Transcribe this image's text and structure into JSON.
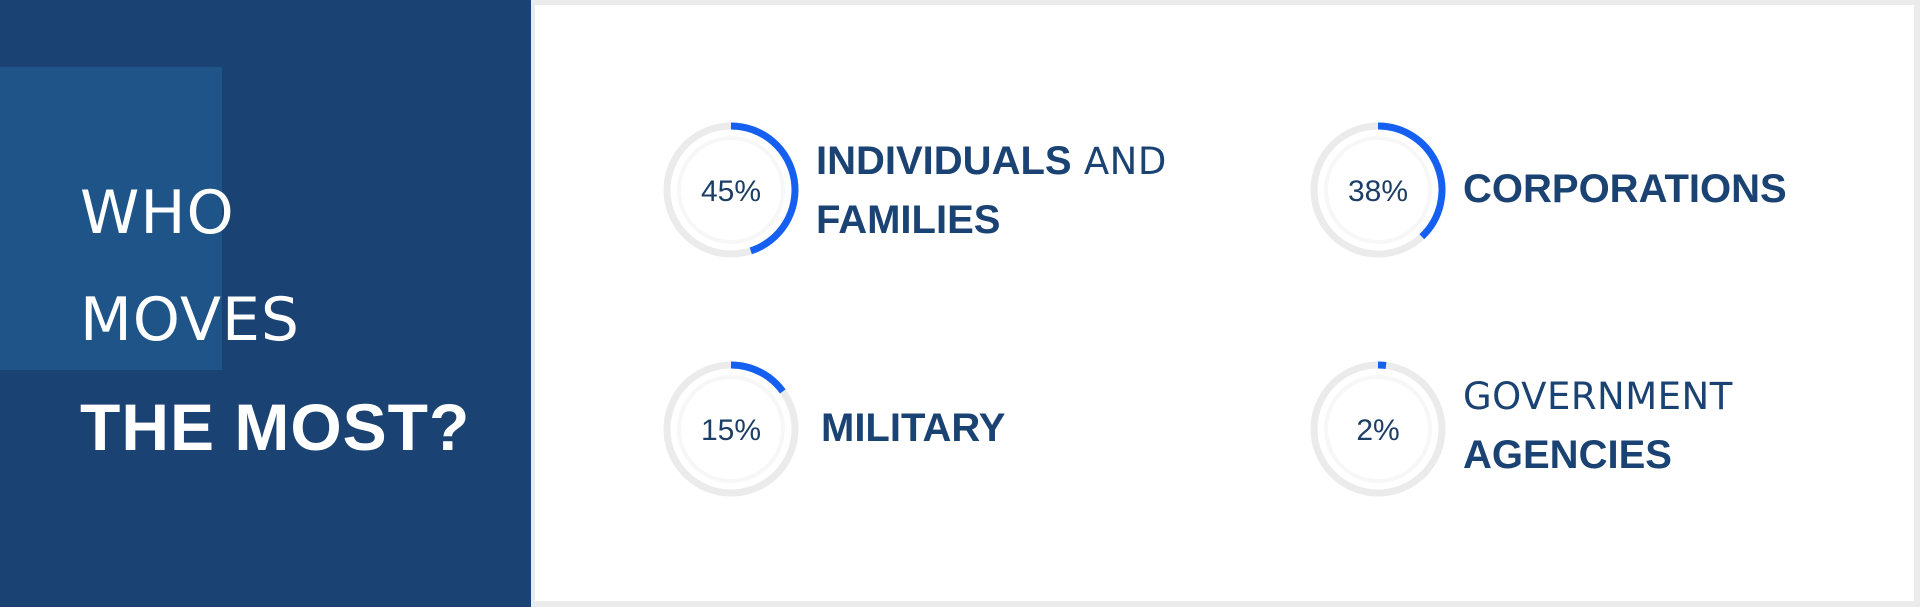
{
  "headline": {
    "line1": "WHO",
    "line2": "MOVES",
    "line3": "THE MOST?"
  },
  "chart_data": {
    "type": "donut",
    "title": "WHO MOVES THE MOST?",
    "series": [
      {
        "value": 45,
        "percent_label": "45%",
        "label_bold_1": "INDIVIDUALS",
        "label_light_1": " AND",
        "label_bold_2": "FAMILIES"
      },
      {
        "value": 38,
        "percent_label": "38%",
        "label_bold_1": "CORPORATIONS"
      },
      {
        "value": 15,
        "percent_label": "15%",
        "label_bold_1": "MILITARY"
      },
      {
        "value": 2,
        "percent_label": "2%",
        "label_light_1": "GOVERNMENT",
        "label_bold_2": "AGENCIES"
      }
    ],
    "ring_color": "#ebebeb",
    "value_color": "#1560f0"
  },
  "colors": {
    "panel_dark": "#1a4272",
    "panel_accent": "#1f5489",
    "text_dark": "#1a4272"
  }
}
